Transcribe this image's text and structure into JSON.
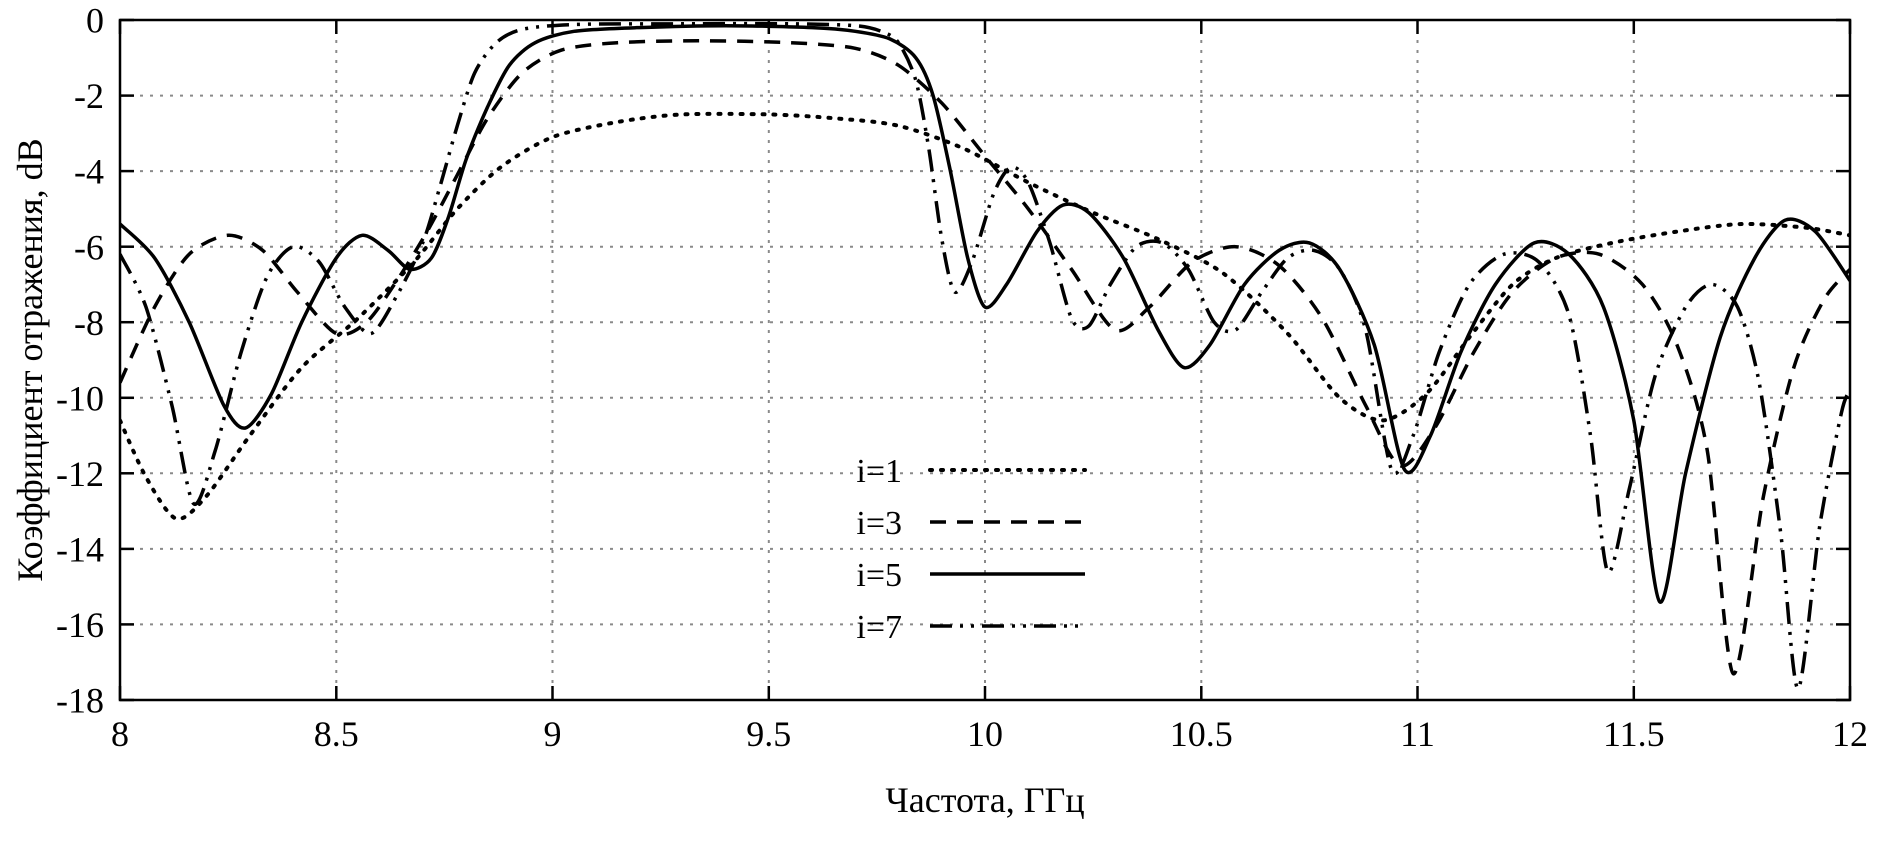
{
  "figure": {
    "background": "#ffffff",
    "axis_color": "#000000",
    "grid_color": "#8a8a8a"
  },
  "chart_data": {
    "type": "line",
    "title": "",
    "xlabel": "Частота, ГГц",
    "ylabel": "Коэффициент отражения, dB",
    "xlim": [
      8,
      12
    ],
    "ylim": [
      -18,
      0
    ],
    "xticks": [
      8,
      8.5,
      9,
      9.5,
      10,
      10.5,
      11,
      11.5,
      12
    ],
    "yticks": [
      0,
      -2,
      -4,
      -6,
      -8,
      -10,
      -12,
      -14,
      -16,
      -18
    ],
    "grid": true,
    "legend_position": "inside-bottom-center-left",
    "legend_entries": [
      "i=1",
      "i=3",
      "i=5",
      "i=7"
    ],
    "series": [
      {
        "name": "i=1",
        "style": "dotted",
        "color": "#000000",
        "points": [
          [
            8.0,
            -10.6
          ],
          [
            8.06,
            -12.1
          ],
          [
            8.13,
            -13.2
          ],
          [
            8.2,
            -12.6
          ],
          [
            8.3,
            -11.0
          ],
          [
            8.42,
            -9.2
          ],
          [
            8.55,
            -7.9
          ],
          [
            8.68,
            -6.4
          ],
          [
            8.78,
            -5.0
          ],
          [
            8.88,
            -3.9
          ],
          [
            9.0,
            -3.1
          ],
          [
            9.15,
            -2.7
          ],
          [
            9.3,
            -2.5
          ],
          [
            9.5,
            -2.5
          ],
          [
            9.65,
            -2.6
          ],
          [
            9.8,
            -2.8
          ],
          [
            9.95,
            -3.4
          ],
          [
            10.1,
            -4.3
          ],
          [
            10.25,
            -5.1
          ],
          [
            10.4,
            -5.8
          ],
          [
            10.55,
            -6.7
          ],
          [
            10.7,
            -8.3
          ],
          [
            10.82,
            -10.0
          ],
          [
            10.92,
            -10.6
          ],
          [
            11.02,
            -9.9
          ],
          [
            11.12,
            -8.4
          ],
          [
            11.22,
            -7.0
          ],
          [
            11.32,
            -6.3
          ],
          [
            11.45,
            -5.9
          ],
          [
            11.6,
            -5.6
          ],
          [
            11.75,
            -5.4
          ],
          [
            11.9,
            -5.5
          ],
          [
            12.0,
            -5.7
          ]
        ]
      },
      {
        "name": "i=3",
        "style": "dashed",
        "color": "#000000",
        "points": [
          [
            8.0,
            -9.6
          ],
          [
            8.08,
            -7.6
          ],
          [
            8.16,
            -6.2
          ],
          [
            8.25,
            -5.7
          ],
          [
            8.33,
            -6.1
          ],
          [
            8.41,
            -7.2
          ],
          [
            8.5,
            -8.3
          ],
          [
            8.57,
            -8.0
          ],
          [
            8.64,
            -6.9
          ],
          [
            8.71,
            -5.6
          ],
          [
            8.78,
            -4.1
          ],
          [
            8.85,
            -2.6
          ],
          [
            8.93,
            -1.4
          ],
          [
            9.02,
            -0.8
          ],
          [
            9.15,
            -0.6
          ],
          [
            9.35,
            -0.55
          ],
          [
            9.55,
            -0.6
          ],
          [
            9.7,
            -0.75
          ],
          [
            9.8,
            -1.2
          ],
          [
            9.9,
            -2.2
          ],
          [
            10.0,
            -3.6
          ],
          [
            10.1,
            -5.0
          ],
          [
            10.2,
            -6.6
          ],
          [
            10.3,
            -8.2
          ],
          [
            10.38,
            -7.6
          ],
          [
            10.48,
            -6.4
          ],
          [
            10.58,
            -6.0
          ],
          [
            10.68,
            -6.5
          ],
          [
            10.78,
            -7.9
          ],
          [
            10.88,
            -10.2
          ],
          [
            10.96,
            -11.8
          ],
          [
            11.04,
            -10.8
          ],
          [
            11.13,
            -8.8
          ],
          [
            11.22,
            -7.2
          ],
          [
            11.32,
            -6.3
          ],
          [
            11.42,
            -6.2
          ],
          [
            11.52,
            -7.0
          ],
          [
            11.6,
            -8.6
          ],
          [
            11.67,
            -11.4
          ],
          [
            11.73,
            -17.3
          ],
          [
            11.8,
            -12.6
          ],
          [
            11.87,
            -9.2
          ],
          [
            11.94,
            -7.4
          ],
          [
            12.0,
            -6.6
          ]
        ]
      },
      {
        "name": "i=5",
        "style": "solid",
        "color": "#000000",
        "points": [
          [
            8.0,
            -5.4
          ],
          [
            8.08,
            -6.3
          ],
          [
            8.16,
            -8.0
          ],
          [
            8.24,
            -10.2
          ],
          [
            8.29,
            -10.8
          ],
          [
            8.35,
            -9.9
          ],
          [
            8.42,
            -8.0
          ],
          [
            8.5,
            -6.3
          ],
          [
            8.56,
            -5.7
          ],
          [
            8.62,
            -6.1
          ],
          [
            8.67,
            -6.6
          ],
          [
            8.72,
            -6.3
          ],
          [
            8.76,
            -5.2
          ],
          [
            8.8,
            -3.7
          ],
          [
            8.85,
            -2.3
          ],
          [
            8.9,
            -1.2
          ],
          [
            8.96,
            -0.6
          ],
          [
            9.05,
            -0.3
          ],
          [
            9.2,
            -0.2
          ],
          [
            9.4,
            -0.15
          ],
          [
            9.6,
            -0.2
          ],
          [
            9.7,
            -0.3
          ],
          [
            9.78,
            -0.5
          ],
          [
            9.84,
            -1.0
          ],
          [
            9.88,
            -2.0
          ],
          [
            9.92,
            -4.0
          ],
          [
            9.96,
            -6.3
          ],
          [
            10.0,
            -7.6
          ],
          [
            10.05,
            -7.0
          ],
          [
            10.12,
            -5.6
          ],
          [
            10.18,
            -4.9
          ],
          [
            10.24,
            -5.1
          ],
          [
            10.32,
            -6.3
          ],
          [
            10.4,
            -8.2
          ],
          [
            10.46,
            -9.2
          ],
          [
            10.52,
            -8.6
          ],
          [
            10.6,
            -7.0
          ],
          [
            10.68,
            -6.1
          ],
          [
            10.75,
            -5.9
          ],
          [
            10.82,
            -6.6
          ],
          [
            10.9,
            -8.6
          ],
          [
            10.97,
            -11.9
          ],
          [
            11.03,
            -11.0
          ],
          [
            11.1,
            -8.8
          ],
          [
            11.18,
            -7.0
          ],
          [
            11.27,
            -5.9
          ],
          [
            11.35,
            -6.2
          ],
          [
            11.43,
            -7.6
          ],
          [
            11.5,
            -10.6
          ],
          [
            11.56,
            -15.4
          ],
          [
            11.62,
            -12.0
          ],
          [
            11.7,
            -8.4
          ],
          [
            11.78,
            -6.3
          ],
          [
            11.85,
            -5.3
          ],
          [
            11.92,
            -5.6
          ],
          [
            12.0,
            -6.9
          ]
        ]
      },
      {
        "name": "i=7",
        "style": "dashdotdot",
        "color": "#000000",
        "points": [
          [
            8.0,
            -6.2
          ],
          [
            8.06,
            -7.6
          ],
          [
            8.12,
            -10.2
          ],
          [
            8.17,
            -12.8
          ],
          [
            8.22,
            -11.4
          ],
          [
            8.28,
            -8.8
          ],
          [
            8.34,
            -6.8
          ],
          [
            8.4,
            -6.0
          ],
          [
            8.46,
            -6.4
          ],
          [
            8.52,
            -7.6
          ],
          [
            8.58,
            -8.3
          ],
          [
            8.64,
            -7.3
          ],
          [
            8.7,
            -5.9
          ],
          [
            8.74,
            -4.4
          ],
          [
            8.78,
            -2.8
          ],
          [
            8.82,
            -1.4
          ],
          [
            8.87,
            -0.6
          ],
          [
            8.93,
            -0.25
          ],
          [
            9.05,
            -0.12
          ],
          [
            9.3,
            -0.1
          ],
          [
            9.55,
            -0.1
          ],
          [
            9.7,
            -0.15
          ],
          [
            9.76,
            -0.3
          ],
          [
            9.8,
            -0.6
          ],
          [
            9.84,
            -1.6
          ],
          [
            9.87,
            -3.4
          ],
          [
            9.9,
            -5.8
          ],
          [
            9.93,
            -7.2
          ],
          [
            9.97,
            -6.4
          ],
          [
            10.02,
            -4.6
          ],
          [
            10.06,
            -3.9
          ],
          [
            10.1,
            -4.3
          ],
          [
            10.15,
            -5.9
          ],
          [
            10.2,
            -7.9
          ],
          [
            10.24,
            -8.1
          ],
          [
            10.29,
            -7.0
          ],
          [
            10.35,
            -6.0
          ],
          [
            10.41,
            -5.9
          ],
          [
            10.47,
            -6.6
          ],
          [
            10.53,
            -8.0
          ],
          [
            10.58,
            -8.2
          ],
          [
            10.64,
            -7.2
          ],
          [
            10.7,
            -6.3
          ],
          [
            10.76,
            -6.1
          ],
          [
            10.82,
            -6.6
          ],
          [
            10.88,
            -8.2
          ],
          [
            10.94,
            -11.9
          ],
          [
            10.99,
            -11.0
          ],
          [
            11.05,
            -8.8
          ],
          [
            11.12,
            -7.0
          ],
          [
            11.2,
            -6.2
          ],
          [
            11.28,
            -6.4
          ],
          [
            11.35,
            -7.8
          ],
          [
            11.4,
            -11.0
          ],
          [
            11.44,
            -14.6
          ],
          [
            11.49,
            -12.4
          ],
          [
            11.55,
            -9.4
          ],
          [
            11.62,
            -7.6
          ],
          [
            11.68,
            -7.0
          ],
          [
            11.74,
            -7.6
          ],
          [
            11.79,
            -9.6
          ],
          [
            11.84,
            -13.6
          ],
          [
            11.88,
            -17.7
          ],
          [
            11.93,
            -13.4
          ],
          [
            11.98,
            -10.4
          ],
          [
            12.0,
            -9.8
          ]
        ]
      }
    ]
  }
}
